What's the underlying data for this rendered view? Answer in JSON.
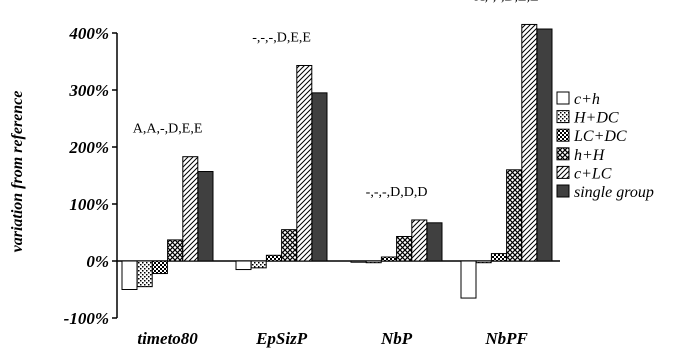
{
  "chart_data": {
    "type": "bar",
    "ylabel": "variation from reference",
    "xlabel": "",
    "ylim": [
      -100,
      400
    ],
    "yticks": [
      -100,
      0,
      100,
      200,
      300,
      400
    ],
    "ytick_labels": [
      "-100%",
      "0%",
      "100%",
      "200%",
      "300%",
      "400%"
    ],
    "categories": [
      "timeto80",
      "EpSizP",
      "NbP",
      "NbPF"
    ],
    "annotations": [
      "A,A,-,D,E,E",
      "-,-,-,D,E,E",
      "-,-,-,D,D,D",
      "A,-,-,D,E,E"
    ],
    "series": [
      {
        "name": "c+h",
        "values": [
          -50,
          -15,
          -2,
          -65
        ],
        "pattern": "white"
      },
      {
        "name": "H+DC",
        "values": [
          -45,
          -12,
          -3,
          -3
        ],
        "pattern": "dots"
      },
      {
        "name": "LC+DC",
        "values": [
          -22,
          10,
          7,
          13
        ],
        "pattern": "checks"
      },
      {
        "name": "h+H",
        "values": [
          37,
          55,
          43,
          160
        ],
        "pattern": "crosshatch"
      },
      {
        "name": "c+LC",
        "values": [
          183,
          343,
          72,
          415
        ],
        "pattern": "diagonal"
      },
      {
        "name": "single group",
        "values": [
          157,
          295,
          67,
          407
        ],
        "pattern": "solid"
      }
    ],
    "grid": false,
    "legend_position": "right"
  }
}
